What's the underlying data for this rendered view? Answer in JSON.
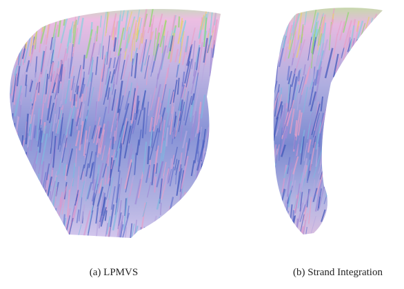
{
  "figure": {
    "panels": [
      {
        "caption": "(a)  LPMVS"
      },
      {
        "caption": "(b)  Strand Integration"
      }
    ]
  }
}
